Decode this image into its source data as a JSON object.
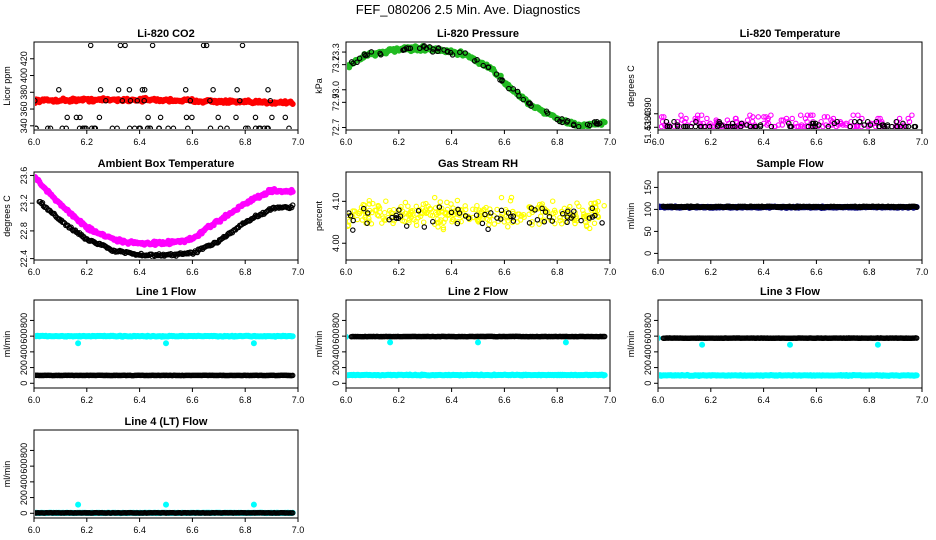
{
  "figure": {
    "title": "FEF_080206  2.5 Min. Ave. Diagnostics"
  },
  "colors": {
    "red": "#ff0000",
    "green": "#22bb22",
    "magenta": "#ff00ff",
    "yellow": "#ffff00",
    "navy": "#000080",
    "cyan": "#00ffff",
    "black": "#000000"
  },
  "chart_data": [
    {
      "id": "co2",
      "type": "scatter",
      "title": "Li-820 CO2",
      "ylabel": "Licor ppm",
      "xlim": [
        6.0,
        7.0
      ],
      "ylim": [
        335,
        440
      ],
      "xticks": [
        "6.0",
        "6.2",
        "6.4",
        "6.6",
        "6.8",
        "7.0"
      ],
      "yticks": [
        "340",
        "360",
        "380",
        "400",
        "420"
      ],
      "series": [
        {
          "color": "red",
          "pattern": "band",
          "x_range": [
            6.0,
            6.98
          ],
          "anchors": [
            [
              6.0,
              370
            ],
            [
              6.2,
              371
            ],
            [
              6.4,
              371
            ],
            [
              6.6,
              370
            ],
            [
              6.8,
              368
            ],
            [
              6.98,
              368
            ]
          ],
          "spread": 3
        },
        {
          "color": "black",
          "pattern": "levels",
          "x_range": [
            6.0,
            6.98
          ],
          "levels": [
            337,
            350,
            370,
            383,
            436
          ]
        }
      ]
    },
    {
      "id": "pressure",
      "type": "scatter",
      "title": "Li-820 Pressure",
      "ylabel": "kPa",
      "xlim": [
        6.0,
        7.0
      ],
      "ylim": [
        72.68,
        73.38
      ],
      "xticks": [
        "6.0",
        "6.2",
        "6.4",
        "6.6",
        "6.8",
        "7.0"
      ],
      "yticks": [
        "72.7",
        "72.9",
        "73.0",
        "73.2",
        "73.3"
      ],
      "series": [
        {
          "color": "green",
          "pattern": "band",
          "x_range": [
            6.0,
            6.98
          ],
          "anchors": [
            [
              6.0,
              73.18
            ],
            [
              6.08,
              73.28
            ],
            [
              6.2,
              73.32
            ],
            [
              6.3,
              73.33
            ],
            [
              6.45,
              73.28
            ],
            [
              6.55,
              73.17
            ],
            [
              6.62,
              73.02
            ],
            [
              6.7,
              72.88
            ],
            [
              6.8,
              72.77
            ],
            [
              6.88,
              72.71
            ],
            [
              6.98,
              72.74
            ]
          ],
          "spread": 0.025
        },
        {
          "color": "black",
          "pattern": "follow",
          "x_range": [
            6.02,
            6.98
          ],
          "count": 70,
          "spread": 0.03
        }
      ]
    },
    {
      "id": "temperature",
      "type": "scatter",
      "title": "Li-820 Temperature",
      "ylabel": "degrees C",
      "xlim": [
        6.0,
        7.0
      ],
      "ylim": [
        51.4378,
        51.4443
      ],
      "xticks": [
        "6.0",
        "6.2",
        "6.4",
        "6.6",
        "6.8",
        "7.0"
      ],
      "yticks": [
        "51.4380",
        "51.4390"
      ],
      "series": [
        {
          "color": "magenta",
          "pattern": "levels",
          "x_range": [
            6.0,
            6.98
          ],
          "levels": [
            51.43805,
            51.43817,
            51.43829,
            51.43841,
            51.43853,
            51.43865,
            51.43877,
            51.43889
          ]
        },
        {
          "color": "black",
          "pattern": "levels",
          "x_range": [
            6.0,
            6.98
          ],
          "levels": [
            51.43805,
            51.43817,
            51.43829,
            51.43841
          ]
        }
      ]
    },
    {
      "id": "boxtemp",
      "type": "scatter",
      "title": "Ambient Box Temperature",
      "ylabel": "degrees C",
      "xlim": [
        6.0,
        7.0
      ],
      "ylim": [
        22.38,
        23.65
      ],
      "xticks": [
        "6.0",
        "6.2",
        "6.4",
        "6.6",
        "6.8",
        "7.0"
      ],
      "yticks": [
        "22.4",
        "22.8",
        "23.2",
        "23.6"
      ],
      "series": [
        {
          "color": "magenta",
          "pattern": "band",
          "x_range": [
            6.0,
            6.98
          ],
          "anchors": [
            [
              6.0,
              23.58
            ],
            [
              6.1,
              23.18
            ],
            [
              6.2,
              22.85
            ],
            [
              6.3,
              22.67
            ],
            [
              6.4,
              22.62
            ],
            [
              6.5,
              22.62
            ],
            [
              6.6,
              22.68
            ],
            [
              6.7,
              22.95
            ],
            [
              6.8,
              23.2
            ],
            [
              6.9,
              23.38
            ],
            [
              6.98,
              23.36
            ]
          ],
          "spread": 0.04
        },
        {
          "color": "black",
          "pattern": "band",
          "x_range": [
            6.02,
            6.98
          ],
          "anchors": [
            [
              6.02,
              23.22
            ],
            [
              6.1,
              22.95
            ],
            [
              6.2,
              22.68
            ],
            [
              6.3,
              22.52
            ],
            [
              6.4,
              22.45
            ],
            [
              6.5,
              22.45
            ],
            [
              6.6,
              22.48
            ],
            [
              6.7,
              22.65
            ],
            [
              6.8,
              22.92
            ],
            [
              6.9,
              23.12
            ],
            [
              6.98,
              23.15
            ]
          ],
          "spread": 0.03
        }
      ]
    },
    {
      "id": "rh",
      "type": "scatter",
      "title": "Gas Stream RH",
      "ylabel": "percent",
      "xlim": [
        6.0,
        7.0
      ],
      "ylim": [
        3.96,
        4.17
      ],
      "xticks": [
        "6.0",
        "6.2",
        "6.4",
        "6.6",
        "6.8",
        "7.0"
      ],
      "yticks": [
        "4.00",
        "4.10"
      ],
      "series": [
        {
          "color": "yellow",
          "pattern": "noise",
          "x_range": [
            6.0,
            6.98
          ],
          "center": 4.07,
          "spread": 0.045
        },
        {
          "color": "black",
          "pattern": "noise",
          "x_range": [
            6.0,
            6.98
          ],
          "center": 4.065,
          "spread": 0.04
        }
      ]
    },
    {
      "id": "sampleflow",
      "type": "scatter",
      "title": "Sample Flow",
      "ylabel": "ml/min",
      "xlim": [
        6.0,
        7.0
      ],
      "ylim": [
        -15,
        185
      ],
      "xticks": [
        "6.0",
        "6.2",
        "6.4",
        "6.6",
        "6.8",
        "7.0"
      ],
      "yticks": [
        "0",
        "50",
        "100",
        "150"
      ],
      "series": [
        {
          "color": "navy",
          "pattern": "band",
          "x_range": [
            6.0,
            6.98
          ],
          "anchors": [
            [
              6.0,
              105
            ],
            [
              6.98,
              105
            ]
          ],
          "spread": 2
        },
        {
          "color": "black",
          "pattern": "band",
          "x_range": [
            6.02,
            6.98
          ],
          "anchors": [
            [
              6.02,
              106
            ],
            [
              6.98,
              106
            ]
          ],
          "spread": 2
        }
      ]
    },
    {
      "id": "line1",
      "type": "scatter",
      "title": "Line 1 Flow",
      "ylabel": "ml/min",
      "xlim": [
        6.0,
        7.0
      ],
      "ylim": [
        -60,
        1060
      ],
      "xticks": [
        "6.0",
        "6.2",
        "6.4",
        "6.6",
        "6.8",
        "7.0"
      ],
      "yticks": [
        "0",
        "200",
        "400",
        "600",
        "800"
      ],
      "series": [
        {
          "color": "cyan",
          "pattern": "band",
          "x_range": [
            6.0,
            6.98
          ],
          "anchors": [
            [
              6.0,
              600
            ],
            [
              6.98,
              600
            ]
          ],
          "spread": 8,
          "extra": [
            [
              6.167,
              510
            ],
            [
              6.5,
              510
            ],
            [
              6.833,
              510
            ]
          ]
        },
        {
          "color": "black",
          "pattern": "band",
          "x_range": [
            6.0,
            6.98
          ],
          "anchors": [
            [
              6.0,
              100
            ],
            [
              6.98,
              100
            ]
          ],
          "spread": 3
        }
      ]
    },
    {
      "id": "line2",
      "type": "scatter",
      "title": "Line 2 Flow",
      "ylabel": "ml/min",
      "xlim": [
        6.0,
        7.0
      ],
      "ylim": [
        -60,
        1060
      ],
      "xticks": [
        "6.0",
        "6.2",
        "6.4",
        "6.6",
        "6.8",
        "7.0"
      ],
      "yticks": [
        "0",
        "200",
        "400",
        "600",
        "800"
      ],
      "series": [
        {
          "color": "cyan",
          "pattern": "band",
          "x_range": [
            6.0,
            6.98
          ],
          "anchors": [
            [
              6.0,
              105
            ],
            [
              6.98,
              105
            ]
          ],
          "spread": 8,
          "extra": [
            [
              6.0,
              590
            ],
            [
              6.167,
              520
            ],
            [
              6.5,
              520
            ],
            [
              6.833,
              520
            ]
          ]
        },
        {
          "color": "black",
          "pattern": "band",
          "x_range": [
            6.02,
            6.98
          ],
          "anchors": [
            [
              6.02,
              595
            ],
            [
              6.98,
              595
            ]
          ],
          "spread": 3
        }
      ]
    },
    {
      "id": "line3",
      "type": "scatter",
      "title": "Line 3 Flow",
      "ylabel": "ml/min",
      "xlim": [
        6.0,
        7.0
      ],
      "ylim": [
        -60,
        1060
      ],
      "xticks": [
        "6.0",
        "6.2",
        "6.4",
        "6.6",
        "6.8",
        "7.0"
      ],
      "yticks": [
        "0",
        "200",
        "400",
        "600",
        "800"
      ],
      "series": [
        {
          "color": "cyan",
          "pattern": "band",
          "x_range": [
            6.0,
            6.98
          ],
          "anchors": [
            [
              6.0,
              100
            ],
            [
              6.98,
              100
            ]
          ],
          "spread": 8,
          "extra": [
            [
              6.0,
              575
            ],
            [
              6.167,
              490
            ],
            [
              6.5,
              490
            ],
            [
              6.833,
              490
            ]
          ]
        },
        {
          "color": "black",
          "pattern": "band",
          "x_range": [
            6.02,
            6.98
          ],
          "anchors": [
            [
              6.02,
              575
            ],
            [
              6.98,
              575
            ]
          ],
          "spread": 3
        }
      ]
    },
    {
      "id": "line4",
      "type": "scatter",
      "title": "Line 4 (LT) Flow",
      "ylabel": "ml/min",
      "xlim": [
        6.0,
        7.0
      ],
      "ylim": [
        -60,
        1060
      ],
      "xticks": [
        "6.0",
        "6.2",
        "6.4",
        "6.6",
        "6.8",
        "7.0"
      ],
      "yticks": [
        "0",
        "200",
        "400",
        "600",
        "800"
      ],
      "series": [
        {
          "color": "cyan",
          "pattern": "band",
          "x_range": [
            6.0,
            6.98
          ],
          "anchors": [
            [
              6.0,
              5
            ],
            [
              6.98,
              5
            ]
          ],
          "spread": 4,
          "extra": [
            [
              6.167,
              110
            ],
            [
              6.5,
              110
            ],
            [
              6.833,
              110
            ]
          ]
        },
        {
          "color": "black",
          "pattern": "band",
          "x_range": [
            6.0,
            6.98
          ],
          "anchors": [
            [
              6.0,
              5
            ],
            [
              6.98,
              5
            ]
          ],
          "spread": 3
        }
      ]
    }
  ]
}
